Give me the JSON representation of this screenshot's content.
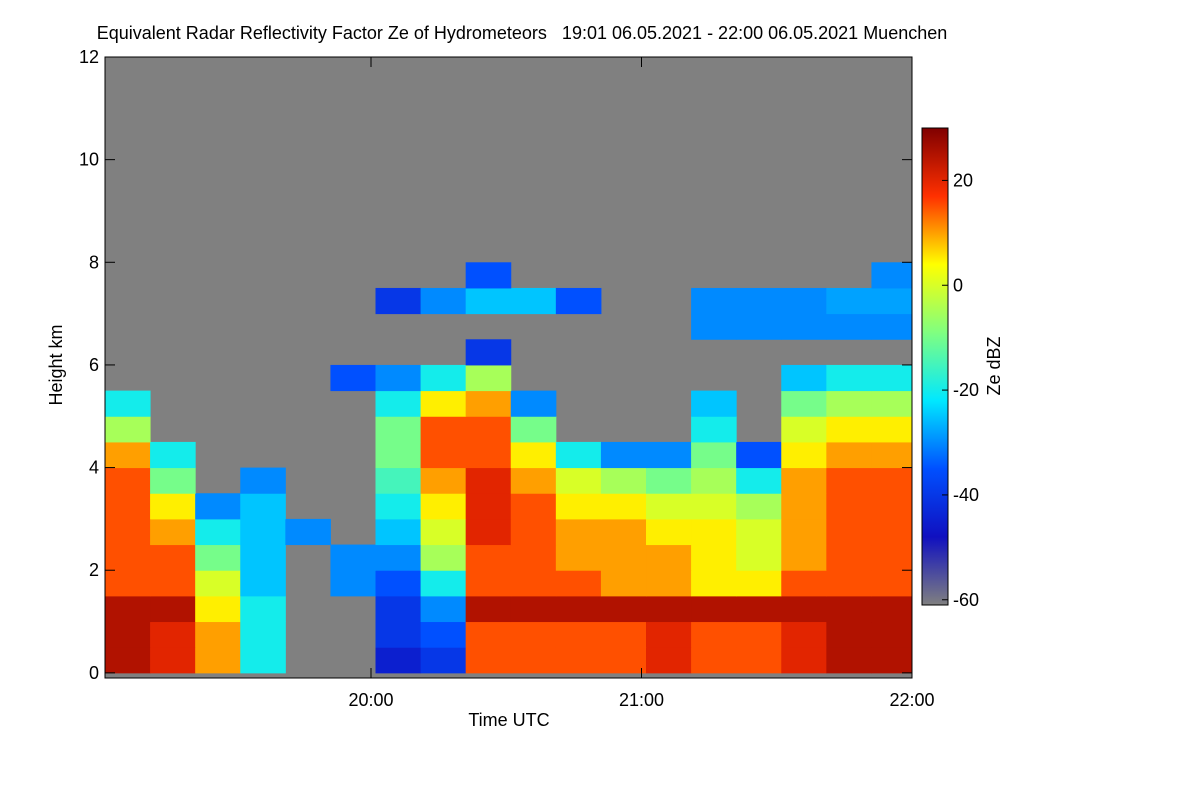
{
  "chart_data": {
    "type": "heatmap",
    "title": "Equivalent Radar Reflectivity Factor Ze of Hydrometeors   19:01 06.05.2021 - 22:00 06.05.2021 Muenchen",
    "x_label": "Time UTC",
    "y_label": "Height km",
    "colorbar_label": "Ze dBZ",
    "xlim": [
      1141,
      1320
    ],
    "xticks": [
      {
        "value": 1200,
        "label": "20:00"
      },
      {
        "value": 1260,
        "label": "21:00"
      },
      {
        "value": 1320,
        "label": "22:00"
      }
    ],
    "ylim": [
      -0.1,
      12
    ],
    "yticks": [
      0,
      2,
      4,
      6,
      8,
      10,
      12
    ],
    "zlim": [
      -61,
      30
    ],
    "zticks": [
      -60,
      -40,
      -20,
      0,
      20
    ],
    "background": "#808080",
    "colors": [
      "#808080",
      "#1010c0",
      "#0050ff",
      "#00e8ff",
      "#80ff80",
      "#ffff00",
      "#ff3000",
      "#800000"
    ],
    "x": [
      1146,
      1156,
      1166,
      1176,
      1186,
      1196,
      1206,
      1216,
      1226,
      1236,
      1246,
      1256,
      1266,
      1276,
      1286,
      1296,
      1306,
      1316
    ],
    "y": [
      0.25,
      0.75,
      1.25,
      1.75,
      2.25,
      2.75,
      3.25,
      3.75,
      4.25,
      4.75,
      5.25,
      5.75,
      6.25,
      6.75,
      7.25,
      7.75
    ],
    "z": [
      [
        25,
        20,
        10,
        -20,
        null,
        null,
        -45,
        -40,
        15,
        15,
        15,
        15,
        20,
        15,
        15,
        20,
        25,
        25
      ],
      [
        25,
        20,
        10,
        -20,
        null,
        null,
        -40,
        -35,
        15,
        15,
        15,
        15,
        20,
        15,
        15,
        20,
        25,
        25
      ],
      [
        25,
        25,
        5,
        -20,
        null,
        null,
        -40,
        -30,
        25,
        25,
        25,
        25,
        25,
        25,
        25,
        25,
        25,
        25
      ],
      [
        15,
        15,
        0,
        -25,
        null,
        -30,
        -35,
        -20,
        15,
        15,
        15,
        10,
        10,
        5,
        5,
        15,
        15,
        15
      ],
      [
        15,
        15,
        -10,
        -25,
        null,
        -30,
        -30,
        -5,
        15,
        15,
        10,
        10,
        10,
        5,
        0,
        10,
        15,
        15
      ],
      [
        15,
        10,
        -20,
        -25,
        -30,
        null,
        -25,
        0,
        20,
        15,
        10,
        10,
        5,
        5,
        0,
        10,
        15,
        15
      ],
      [
        15,
        5,
        -30,
        -25,
        null,
        null,
        -20,
        5,
        20,
        15,
        5,
        5,
        0,
        0,
        -5,
        10,
        15,
        15
      ],
      [
        15,
        -10,
        null,
        -30,
        null,
        null,
        -15,
        10,
        20,
        10,
        0,
        -5,
        -10,
        -5,
        -20,
        10,
        15,
        15
      ],
      [
        10,
        -20,
        null,
        null,
        null,
        null,
        -10,
        15,
        15,
        5,
        -20,
        -30,
        -30,
        -10,
        -35,
        5,
        10,
        10
      ],
      [
        -5,
        null,
        null,
        null,
        null,
        null,
        -10,
        15,
        15,
        -10,
        null,
        null,
        null,
        -20,
        null,
        0,
        5,
        5
      ],
      [
        -20,
        null,
        null,
        null,
        null,
        null,
        -20,
        5,
        10,
        -30,
        null,
        null,
        null,
        -25,
        null,
        -10,
        -5,
        -5
      ],
      [
        null,
        null,
        null,
        null,
        null,
        -35,
        -30,
        -20,
        -5,
        null,
        null,
        null,
        null,
        null,
        null,
        -25,
        -20,
        -20
      ],
      [
        null,
        null,
        null,
        null,
        null,
        null,
        null,
        null,
        -40,
        null,
        null,
        null,
        null,
        null,
        null,
        null,
        null,
        null
      ],
      [
        null,
        null,
        null,
        null,
        null,
        null,
        null,
        null,
        null,
        null,
        null,
        null,
        null,
        -30,
        -30,
        -30,
        -30,
        -30
      ],
      [
        null,
        null,
        null,
        null,
        null,
        null,
        -40,
        -30,
        -25,
        -25,
        -35,
        null,
        null,
        -30,
        -30,
        -30,
        -28,
        -28
      ],
      [
        null,
        null,
        null,
        null,
        null,
        null,
        null,
        null,
        -35,
        null,
        null,
        null,
        null,
        null,
        null,
        null,
        null,
        -30
      ]
    ]
  }
}
